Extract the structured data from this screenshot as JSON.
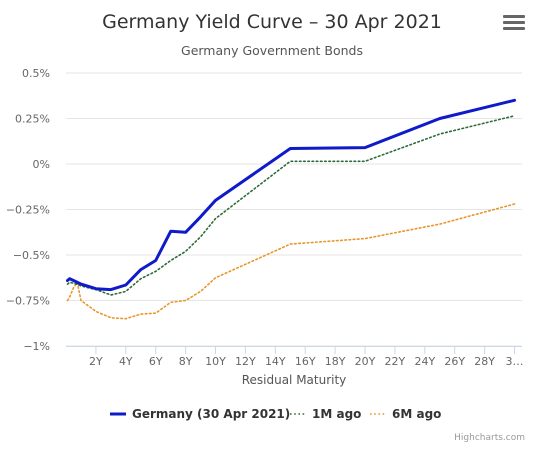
{
  "colors": {
    "germany": "#0f1bc9",
    "m1": "#2e6b3a",
    "m6": "#e8962a",
    "grid": "#e6e6e6",
    "axis": "#ccd6eb"
  },
  "menu": {
    "icon": "hamburger-menu-icon"
  },
  "chart_data": {
    "type": "line",
    "title": "Germany Yield Curve – 30 Apr 2021",
    "subtitle": "Germany Government Bonds",
    "xlabel": "Residual Maturity",
    "ylabel": "",
    "xlim": [
      0,
      30.5
    ],
    "ylim": [
      -1,
      0.5
    ],
    "x_ticks": [
      2,
      4,
      6,
      8,
      10,
      12,
      14,
      16,
      18,
      20,
      22,
      24,
      26,
      28,
      30
    ],
    "x_tick_labels": [
      "2Y",
      "4Y",
      "6Y",
      "8Y",
      "10Y",
      "12Y",
      "14Y",
      "16Y",
      "18Y",
      "20Y",
      "22Y",
      "24Y",
      "26Y",
      "28Y",
      "3…"
    ],
    "y_ticks": [
      0.5,
      0.25,
      0,
      -0.25,
      -0.5,
      -0.75,
      -1
    ],
    "y_tick_labels": [
      "0.5%",
      "0.25%",
      "0%",
      "−0.25%",
      "−0.5%",
      "−0.75%",
      "−1%"
    ],
    "grid": true,
    "legend_position": "bottom-center",
    "series": [
      {
        "name": "Germany (30 Apr 2021)",
        "style": "solid",
        "x": [
          0.1,
          0.25,
          0.5,
          1,
          2,
          3,
          4,
          5,
          6,
          7,
          8,
          9,
          10,
          15,
          20,
          25,
          30
        ],
        "y": [
          -0.64,
          -0.63,
          -0.64,
          -0.66,
          -0.685,
          -0.69,
          -0.665,
          -0.58,
          -0.53,
          -0.37,
          -0.375,
          -0.29,
          -0.2,
          0.085,
          0.09,
          0.25,
          0.35
        ]
      },
      {
        "name": "1M ago",
        "style": "dotted",
        "x": [
          0.1,
          0.25,
          0.5,
          1,
          2,
          3,
          4,
          5,
          6,
          7,
          8,
          9,
          10,
          15,
          20,
          25,
          30
        ],
        "y": [
          -0.66,
          -0.65,
          -0.655,
          -0.67,
          -0.69,
          -0.72,
          -0.7,
          -0.63,
          -0.59,
          -0.53,
          -0.48,
          -0.4,
          -0.3,
          0.015,
          0.015,
          0.165,
          0.265
        ]
      },
      {
        "name": "6M ago",
        "style": "dotted",
        "x": [
          0.1,
          0.25,
          0.5,
          0.75,
          1,
          2,
          3,
          4,
          5,
          6,
          7,
          8,
          9,
          10,
          15,
          20,
          25,
          30
        ],
        "y": [
          -0.75,
          -0.73,
          -0.68,
          -0.65,
          -0.75,
          -0.81,
          -0.845,
          -0.85,
          -0.825,
          -0.82,
          -0.76,
          -0.75,
          -0.7,
          -0.625,
          -0.44,
          -0.41,
          -0.33,
          -0.22
        ]
      }
    ]
  },
  "credits": "Highcharts.com"
}
